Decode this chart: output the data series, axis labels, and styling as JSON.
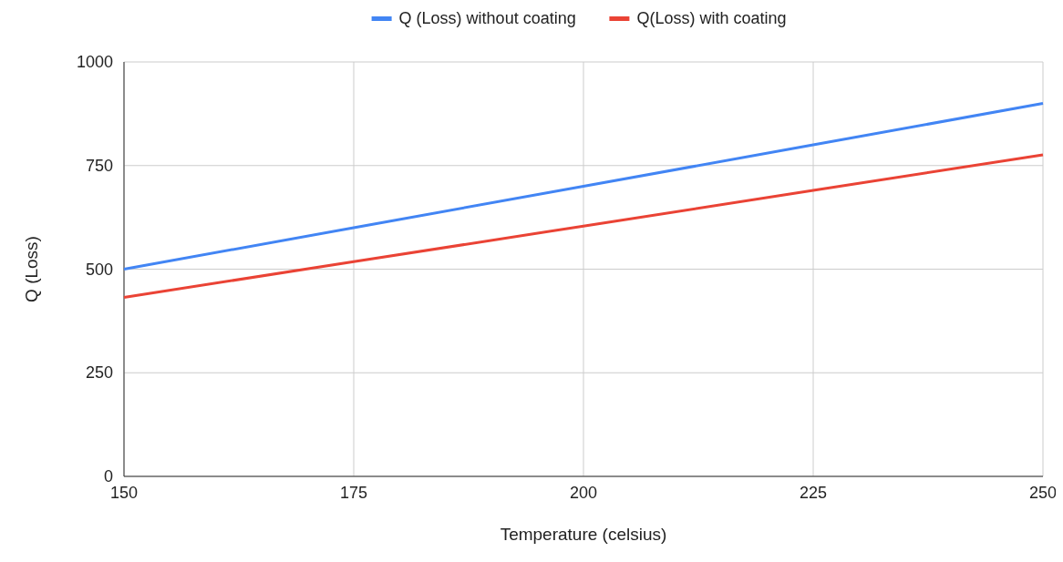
{
  "chart_data": {
    "type": "line",
    "xlabel": "Temperature (celsius)",
    "ylabel": "Q (Loss)",
    "x": [
      150,
      175,
      200,
      225,
      250
    ],
    "series": [
      {
        "name": "Q (Loss) without coating",
        "color": "#4285f4",
        "values": [
          500,
          600,
          700,
          800,
          900
        ]
      },
      {
        "name": "Q(Loss) with coating",
        "color": "#ea4335",
        "values": [
          432,
          518,
          604,
          690,
          776
        ]
      }
    ],
    "xlim": [
      150,
      250
    ],
    "xticks": [
      150,
      175,
      200,
      225,
      250
    ],
    "ylim": [
      0,
      1000
    ],
    "yticks": [
      0,
      250,
      500,
      750,
      1000
    ],
    "grid": true,
    "legend": "top",
    "marker": "none",
    "line_style": "solid"
  }
}
